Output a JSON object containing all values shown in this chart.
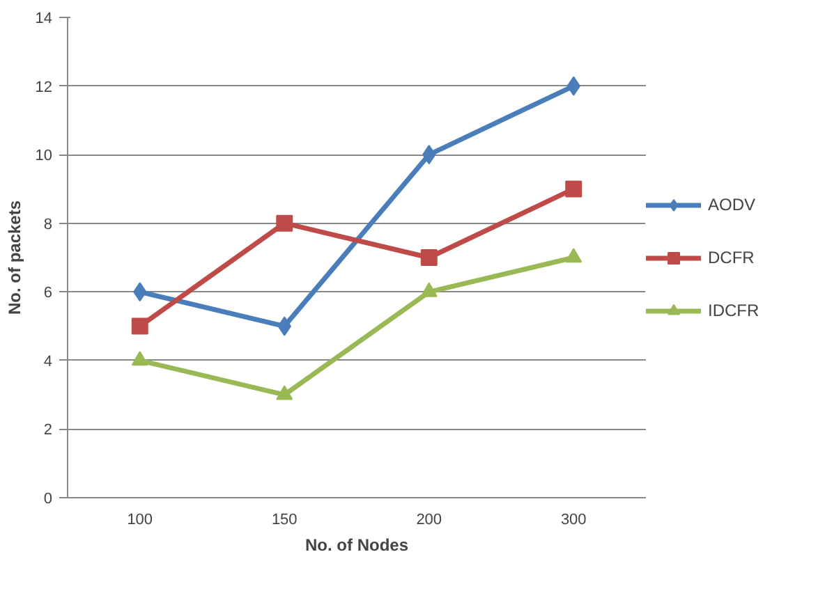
{
  "chart_data": {
    "type": "line",
    "xlabel": "No. of Nodes",
    "ylabel": "No. of packets",
    "categories": [
      "100",
      "150",
      "200",
      "300"
    ],
    "ylim": [
      0,
      14
    ],
    "yticks": [
      0,
      2,
      4,
      6,
      8,
      10,
      12,
      14
    ],
    "grid": "y",
    "legend": "right",
    "line_style": "solid",
    "series": [
      {
        "name": "AODV",
        "color": "#4a7ebb",
        "values": [
          6,
          5,
          10,
          12
        ],
        "marker": "diamond"
      },
      {
        "name": "DCFR",
        "color": "#be4b48",
        "values": [
          5,
          8,
          7,
          9
        ],
        "marker": "square"
      },
      {
        "name": "IDCFR",
        "color": "#98b954",
        "values": [
          4,
          3,
          6,
          7
        ],
        "marker": "triangle"
      }
    ]
  }
}
